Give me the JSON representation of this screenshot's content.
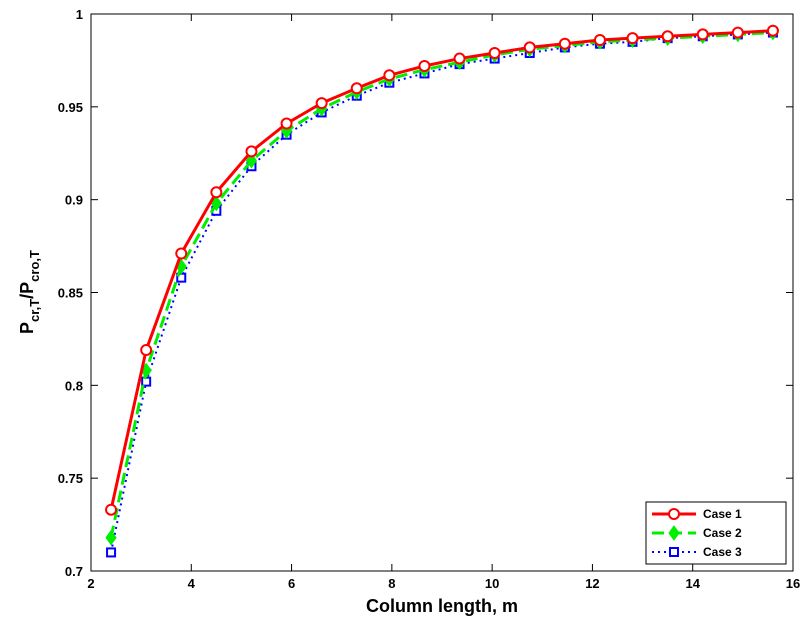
{
  "chart_data": {
    "type": "line",
    "xlabel": "Column length, m",
    "ylabel_main": "P",
    "ylabel_sub1": "cr,T",
    "ylabel_slash": "/P",
    "ylabel_sub2": "cro,T",
    "xlim": [
      2,
      16
    ],
    "ylim": [
      0.7,
      1.0
    ],
    "xticks": [
      "2",
      "4",
      "6",
      "8",
      "10",
      "12",
      "14",
      "16"
    ],
    "yticks": [
      "0.7",
      "0.75",
      "0.8",
      "0.85",
      "0.9",
      "0.95",
      "1"
    ],
    "grid": false,
    "legend_position": "bottom-right",
    "x": [
      2.4,
      3.1,
      3.8,
      4.5,
      5.2,
      5.9,
      6.6,
      7.3,
      7.95,
      8.65,
      9.35,
      10.05,
      10.75,
      11.45,
      12.15,
      12.8,
      13.5,
      14.2,
      14.9,
      15.6
    ],
    "series": [
      {
        "name": "Case 1",
        "color": "#ff0000",
        "line_style": "solid",
        "marker": "circle",
        "values": [
          0.733,
          0.819,
          0.871,
          0.904,
          0.926,
          0.941,
          0.952,
          0.96,
          0.967,
          0.972,
          0.976,
          0.979,
          0.982,
          0.984,
          0.986,
          0.987,
          0.988,
          0.989,
          0.99,
          0.991
        ]
      },
      {
        "name": "Case 2",
        "color": "#00ee00",
        "line_style": "dashed",
        "marker": "diamond",
        "values": [
          0.718,
          0.808,
          0.864,
          0.898,
          0.921,
          0.937,
          0.949,
          0.958,
          0.965,
          0.97,
          0.974,
          0.978,
          0.981,
          0.983,
          0.985,
          0.986,
          0.987,
          0.988,
          0.989,
          0.99
        ]
      },
      {
        "name": "Case 3",
        "color": "#0000ff",
        "line_style": "dotted",
        "marker": "square",
        "values": [
          0.71,
          0.802,
          0.858,
          0.894,
          0.918,
          0.935,
          0.947,
          0.956,
          0.963,
          0.968,
          0.973,
          0.976,
          0.979,
          0.982,
          0.984,
          0.985,
          0.987,
          0.988,
          0.989,
          0.99
        ]
      }
    ]
  }
}
